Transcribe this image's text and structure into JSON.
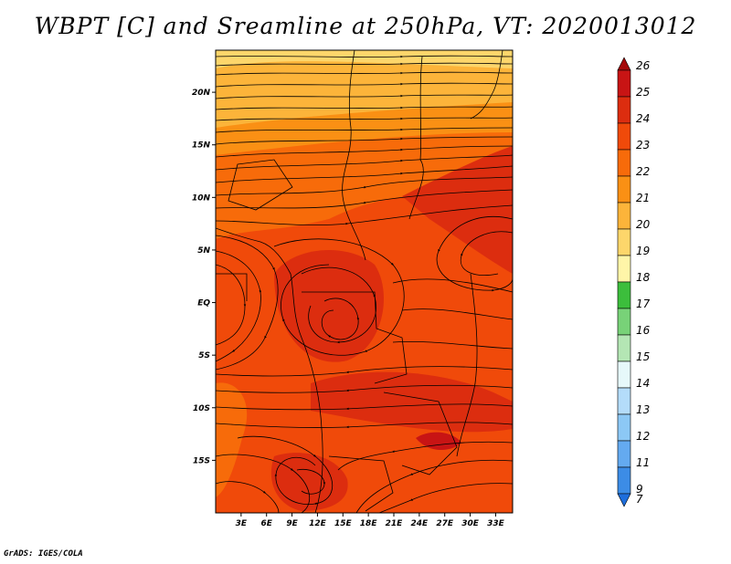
{
  "title": "WBPT [C] and Sreamline at 250hPa, VT: 2020013012",
  "credit": "GrADS: IGES/COLA",
  "map": {
    "lat_range": [
      -20,
      24
    ],
    "lon_range": [
      0,
      35
    ],
    "lat_ticks": [
      {
        "value": 20,
        "label": "20N"
      },
      {
        "value": 15,
        "label": "15N"
      },
      {
        "value": 10,
        "label": "10N"
      },
      {
        "value": 5,
        "label": "5N"
      },
      {
        "value": 0,
        "label": "EQ"
      },
      {
        "value": -5,
        "label": "5S"
      },
      {
        "value": -10,
        "label": "10S"
      },
      {
        "value": -15,
        "label": "15S"
      }
    ],
    "lon_ticks": [
      {
        "value": 3,
        "label": "3E"
      },
      {
        "value": 6,
        "label": "6E"
      },
      {
        "value": 9,
        "label": "9E"
      },
      {
        "value": 12,
        "label": "12E"
      },
      {
        "value": 15,
        "label": "15E"
      },
      {
        "value": 18,
        "label": "18E"
      },
      {
        "value": 21,
        "label": "21E"
      },
      {
        "value": 24,
        "label": "24E"
      },
      {
        "value": 27,
        "label": "27E"
      },
      {
        "value": 30,
        "label": "30E"
      },
      {
        "value": 33,
        "label": "33E"
      }
    ]
  },
  "colorbar": {
    "levels": [
      {
        "label": "26",
        "color": "#a50a0a"
      },
      {
        "label": "25",
        "color": "#c81414"
      },
      {
        "label": "24",
        "color": "#dc2d0f"
      },
      {
        "label": "23",
        "color": "#f04a0a"
      },
      {
        "label": "22",
        "color": "#f76b0a"
      },
      {
        "label": "21",
        "color": "#fa9014"
      },
      {
        "label": "20",
        "color": "#fcb43a"
      },
      {
        "label": "19",
        "color": "#fdd66b"
      },
      {
        "label": "18",
        "color": "#fff5a8"
      },
      {
        "label": "17",
        "color": "#3cbe3c"
      },
      {
        "label": "16",
        "color": "#78d278"
      },
      {
        "label": "15",
        "color": "#b4e6b4"
      },
      {
        "label": "14",
        "color": "#e6f8fa"
      },
      {
        "label": "13",
        "color": "#b4dcfa"
      },
      {
        "label": "12",
        "color": "#8cc8f5"
      },
      {
        "label": "11",
        "color": "#64aaf0"
      },
      {
        "label": "9",
        "color": "#3c8ce6"
      },
      {
        "label": "7",
        "color": "#1e6edc"
      }
    ]
  }
}
